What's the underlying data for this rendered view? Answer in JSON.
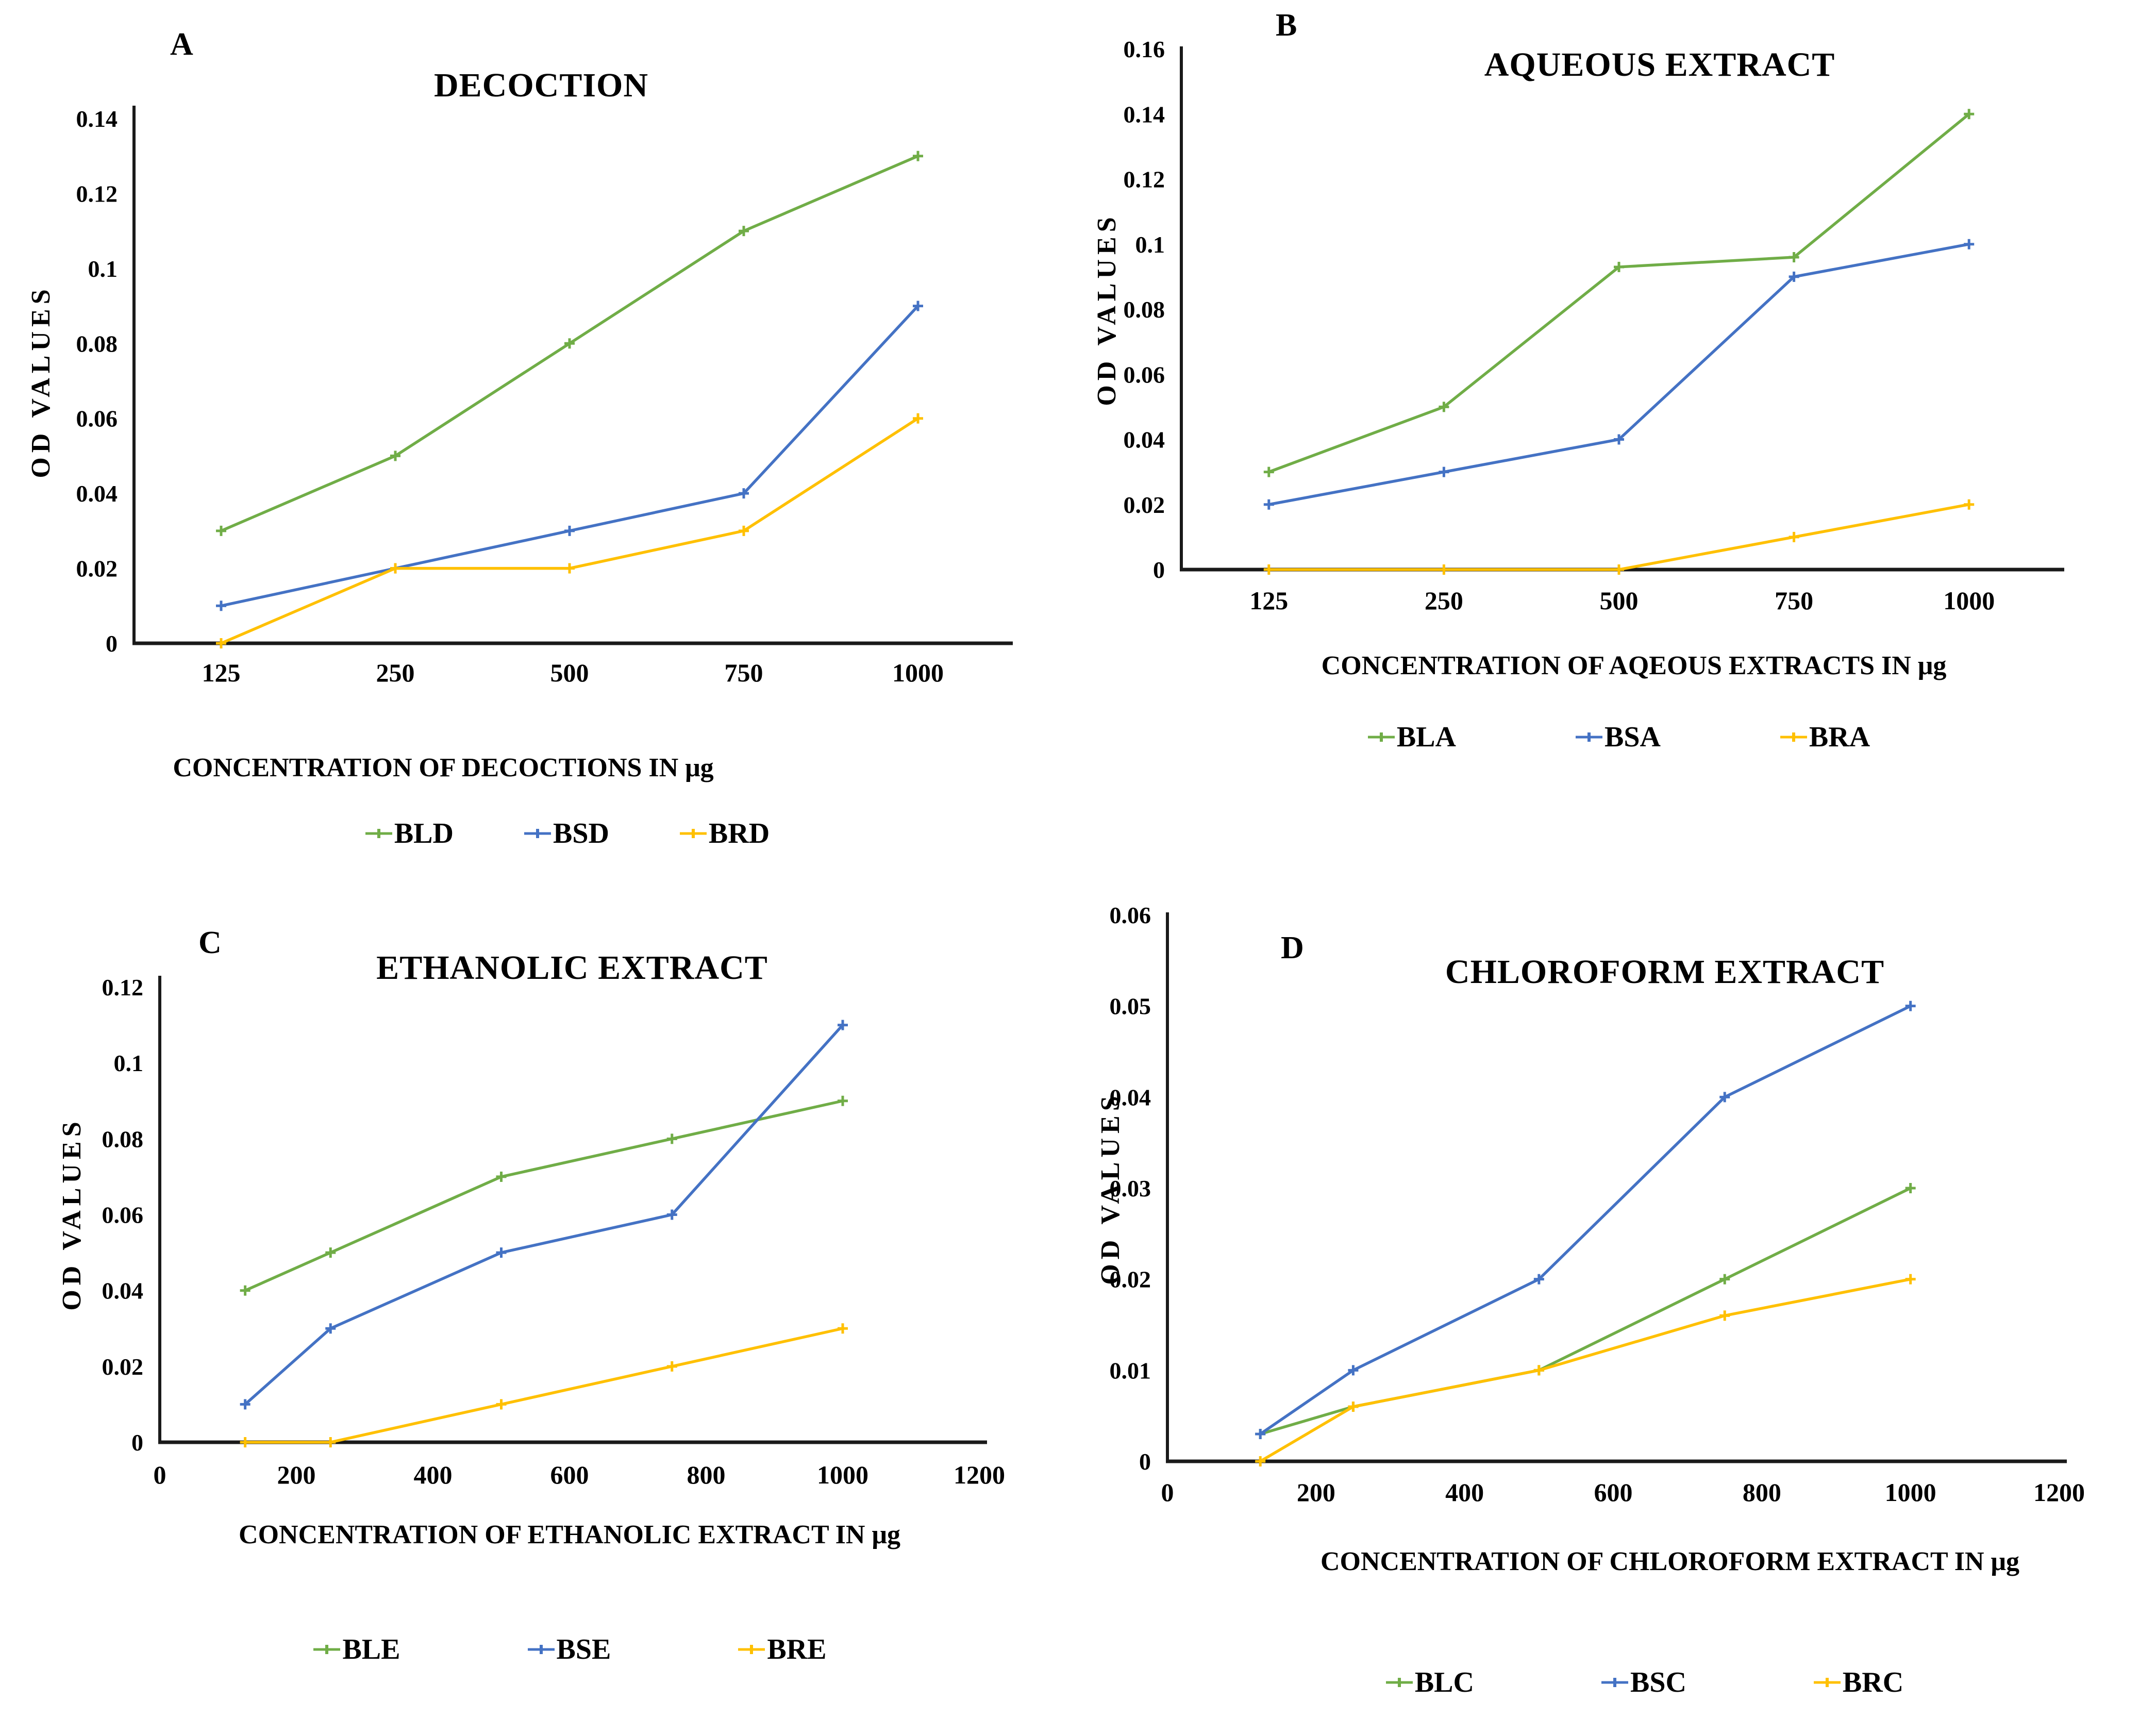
{
  "figure": {
    "type": "multi-panel-line-figure",
    "background": "#ffffff",
    "text_color": "#000000",
    "axis_color": "#000000"
  },
  "chart_data": [
    {
      "type": "line",
      "panel_label": "A",
      "title": "DECOCTION",
      "xlabel": "CONCENTRATION OF DECOCTIONS IN μg",
      "ylabel": "OD VALUES",
      "x_mode": "categorical",
      "categories": [
        "125",
        "250",
        "500",
        "750",
        "1000"
      ],
      "x_values": [
        125,
        250,
        500,
        750,
        1000
      ],
      "ylim": [
        0,
        0.14
      ],
      "y_tick_step": 0.02,
      "y_tick_labels": [
        "0",
        "0.02",
        "0.04",
        "0.06",
        "0.08",
        "0.1",
        "0.12",
        "0.14"
      ],
      "grid": false,
      "legend_position": "bottom",
      "series": [
        {
          "name": "BLD",
          "color": "#70AD47",
          "values": [
            0.03,
            0.05,
            0.08,
            0.11,
            0.13
          ]
        },
        {
          "name": "BSD",
          "color": "#4472C4",
          "values": [
            0.01,
            0.02,
            0.03,
            0.04,
            0.09
          ]
        },
        {
          "name": "BRD",
          "color": "#FFC000",
          "values": [
            0,
            0.02,
            0.02,
            0.03,
            0.06
          ]
        }
      ]
    },
    {
      "type": "line",
      "panel_label": "B",
      "title": "AQUEOUS EXTRACT",
      "xlabel": "CONCENTRATION OF AQEOUS EXTRACTS IN μg",
      "ylabel": "OD VALUES",
      "x_mode": "categorical",
      "categories": [
        "125",
        "250",
        "500",
        "750",
        "1000"
      ],
      "x_values": [
        125,
        250,
        500,
        750,
        1000
      ],
      "ylim": [
        0,
        0.16
      ],
      "y_tick_step": 0.02,
      "y_tick_labels": [
        "0",
        "0.02",
        "0.04",
        "0.06",
        "0.08",
        "0.1",
        "0.12",
        "0.14",
        "0.16"
      ],
      "grid": false,
      "legend_position": "bottom",
      "series": [
        {
          "name": "BLA",
          "color": "#70AD47",
          "values": [
            0.03,
            0.05,
            0.093,
            0.096,
            0.14
          ]
        },
        {
          "name": "BSA",
          "color": "#4472C4",
          "values": [
            0.02,
            0.03,
            0.04,
            0.09,
            0.1
          ]
        },
        {
          "name": "BRA",
          "color": "#FFC000",
          "values": [
            0,
            0,
            0,
            0.01,
            0.02
          ]
        }
      ]
    },
    {
      "type": "line",
      "panel_label": "C",
      "title": "ETHANOLIC EXTRACT",
      "xlabel": "CONCENTRATION OF ETHANOLIC EXTRACT IN μg",
      "ylabel": "OD VALUES",
      "x_mode": "numeric",
      "xlim": [
        0,
        1200
      ],
      "x_ticks": [
        "0",
        "200",
        "400",
        "600",
        "800",
        "1000",
        "1200"
      ],
      "x_values": [
        125,
        250,
        500,
        750,
        1000
      ],
      "ylim": [
        0,
        0.12
      ],
      "y_tick_step": 0.02,
      "y_tick_labels": [
        "0",
        "0.02",
        "0.04",
        "0.06",
        "0.08",
        "0.1",
        "0.12"
      ],
      "grid": false,
      "legend_position": "bottom",
      "series": [
        {
          "name": "BLE",
          "color": "#70AD47",
          "values": [
            0.04,
            0.05,
            0.07,
            0.08,
            0.09
          ]
        },
        {
          "name": "BSE",
          "color": "#4472C4",
          "values": [
            0.01,
            0.03,
            0.05,
            0.06,
            0.11
          ]
        },
        {
          "name": "BRE",
          "color": "#FFC000",
          "values": [
            0,
            0,
            0.01,
            0.02,
            0.03
          ]
        }
      ]
    },
    {
      "type": "line",
      "panel_label": "D",
      "title": "CHLOROFORM EXTRACT",
      "xlabel": "CONCENTRATION OF CHLOROFORM EXTRACT IN μg",
      "ylabel": "OD VALUES",
      "x_mode": "numeric",
      "xlim": [
        0,
        1200
      ],
      "x_ticks": [
        "0",
        "200",
        "400",
        "600",
        "800",
        "1000",
        "1200"
      ],
      "x_values": [
        125,
        250,
        500,
        750,
        1000
      ],
      "ylim": [
        0,
        0.06
      ],
      "y_tick_step": 0.01,
      "y_tick_labels": [
        "0",
        "0.01",
        "0.02",
        "0.03",
        "0.04",
        "0.05",
        "0.06"
      ],
      "grid": false,
      "legend_position": "bottom",
      "series": [
        {
          "name": "BLC",
          "color": "#70AD47",
          "values": [
            0.003,
            0.006,
            0.01,
            0.02,
            0.03
          ]
        },
        {
          "name": "BSC",
          "color": "#4472C4",
          "values": [
            0.003,
            0.01,
            0.02,
            0.04,
            0.05
          ]
        },
        {
          "name": "BRC",
          "color": "#FFC000",
          "values": [
            0,
            0.006,
            0.01,
            0.016,
            0.02
          ]
        }
      ]
    }
  ]
}
